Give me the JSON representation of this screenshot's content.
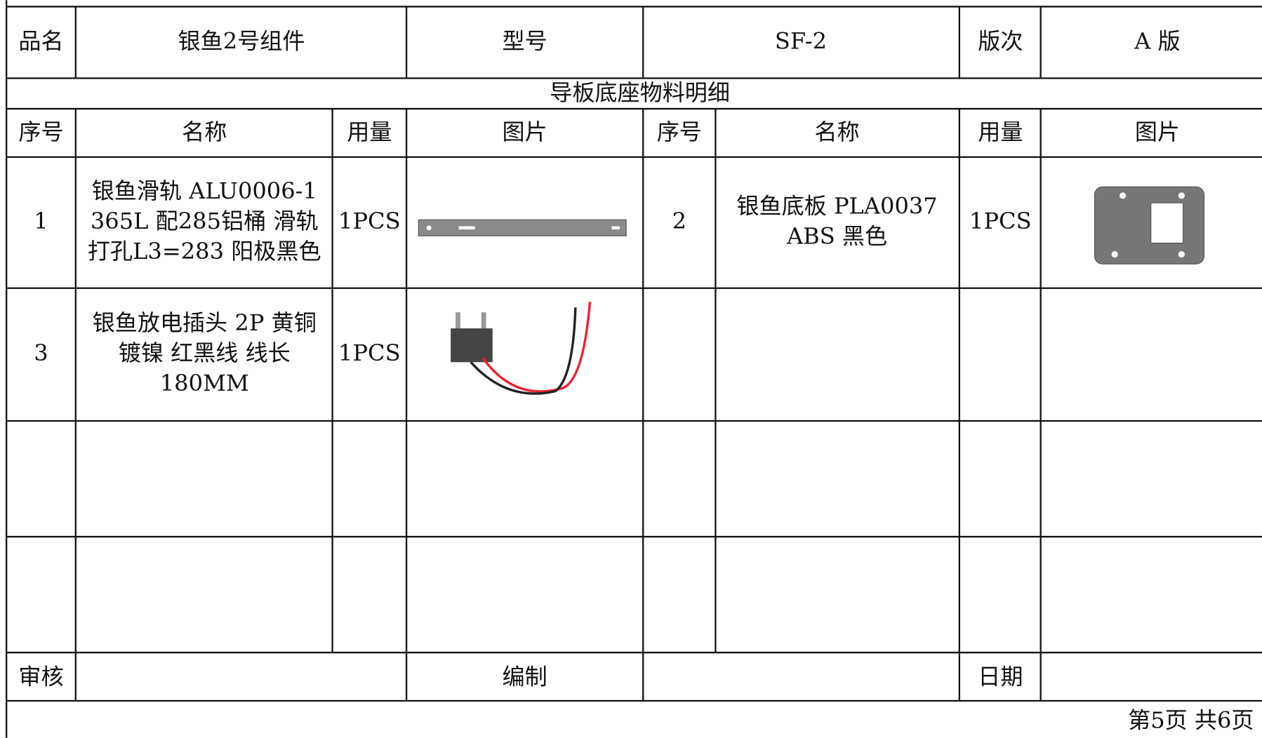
{
  "header": {
    "product_label": "品名",
    "product_name": "银鱼2号组件",
    "model_label": "型号",
    "model": "SF-2",
    "version_label": "版次",
    "version": "A 版"
  },
  "section_title": "导板底座物料明细",
  "table": {
    "columns": [
      "序号",
      "名称",
      "用量",
      "图片",
      "序号",
      "名称",
      "用量",
      "图片"
    ],
    "rows": [
      {
        "left": {
          "no": "1",
          "name": [
            "银鱼滑轨 ALU0006-1",
            "365L 配285铝桶 滑轨",
            "打孔L3=283  阳极黑色"
          ],
          "qty": "1PCS"
        },
        "right": {
          "no": "2",
          "name": [
            "银鱼底板 PLA0037",
            "ABS 黑色"
          ],
          "qty": "1PCS"
        }
      },
      {
        "left": {
          "no": "3",
          "name": [
            "银鱼放电插头 2P 黄铜",
            "镀镍 红黑线  线长",
            "180MM"
          ],
          "qty": "1PCS"
        }
      }
    ]
  },
  "footer": {
    "review_label": "审核",
    "compile_label": "编制",
    "date_label": "日期",
    "page_info": "第5页 共6页"
  }
}
